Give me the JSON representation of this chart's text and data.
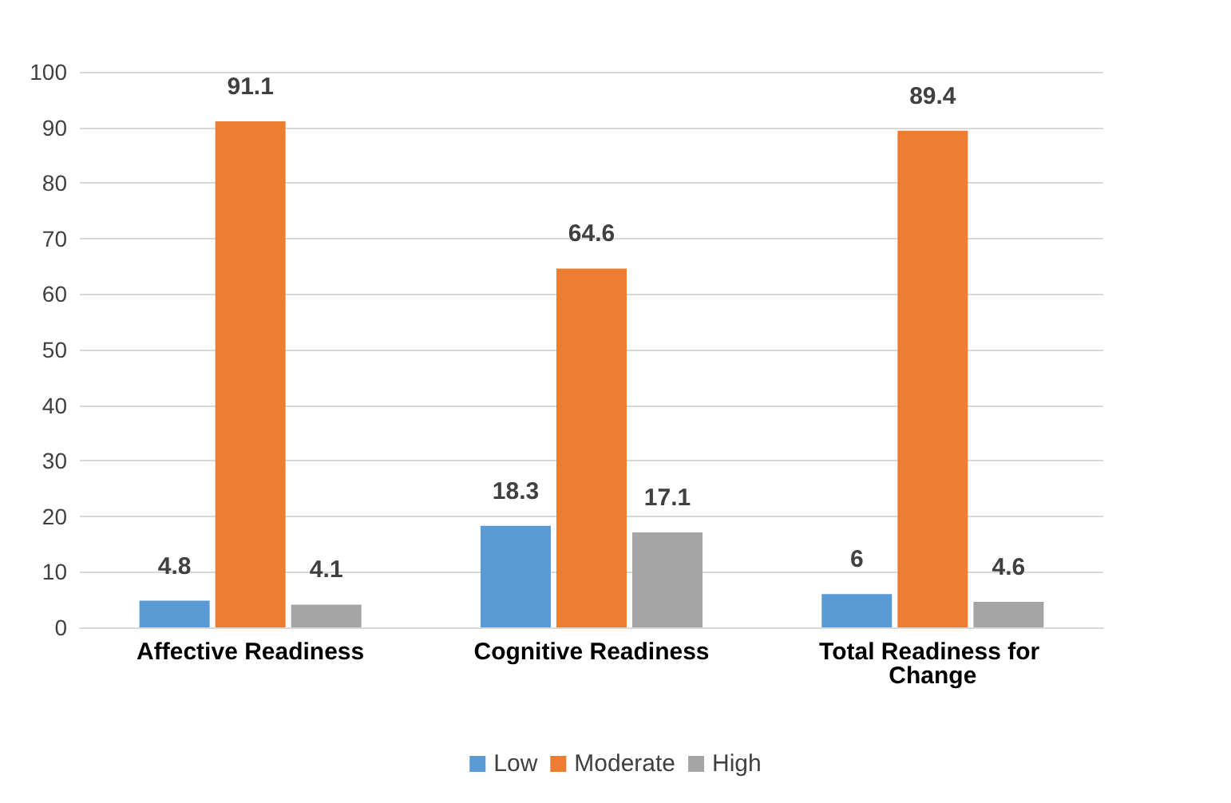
{
  "chart_data": {
    "type": "bar",
    "categories": [
      "Affective Readiness",
      "Cognitive Readiness",
      "Total Readiness for Change"
    ],
    "series": [
      {
        "name": "Low",
        "color": "#5b9bd5",
        "values": [
          4.8,
          18.3,
          6
        ]
      },
      {
        "name": "Moderate",
        "color": "#ed7d31",
        "values": [
          91.1,
          64.6,
          89.4
        ]
      },
      {
        "name": "High",
        "color": "#a5a5a5",
        "values": [
          4.1,
          17.1,
          4.6
        ]
      }
    ],
    "ylim": [
      0,
      100
    ],
    "yticks": [
      0,
      10,
      20,
      30,
      40,
      50,
      60,
      70,
      80,
      90,
      100
    ],
    "grid": true,
    "legend": "bottom",
    "data_labels": true
  }
}
